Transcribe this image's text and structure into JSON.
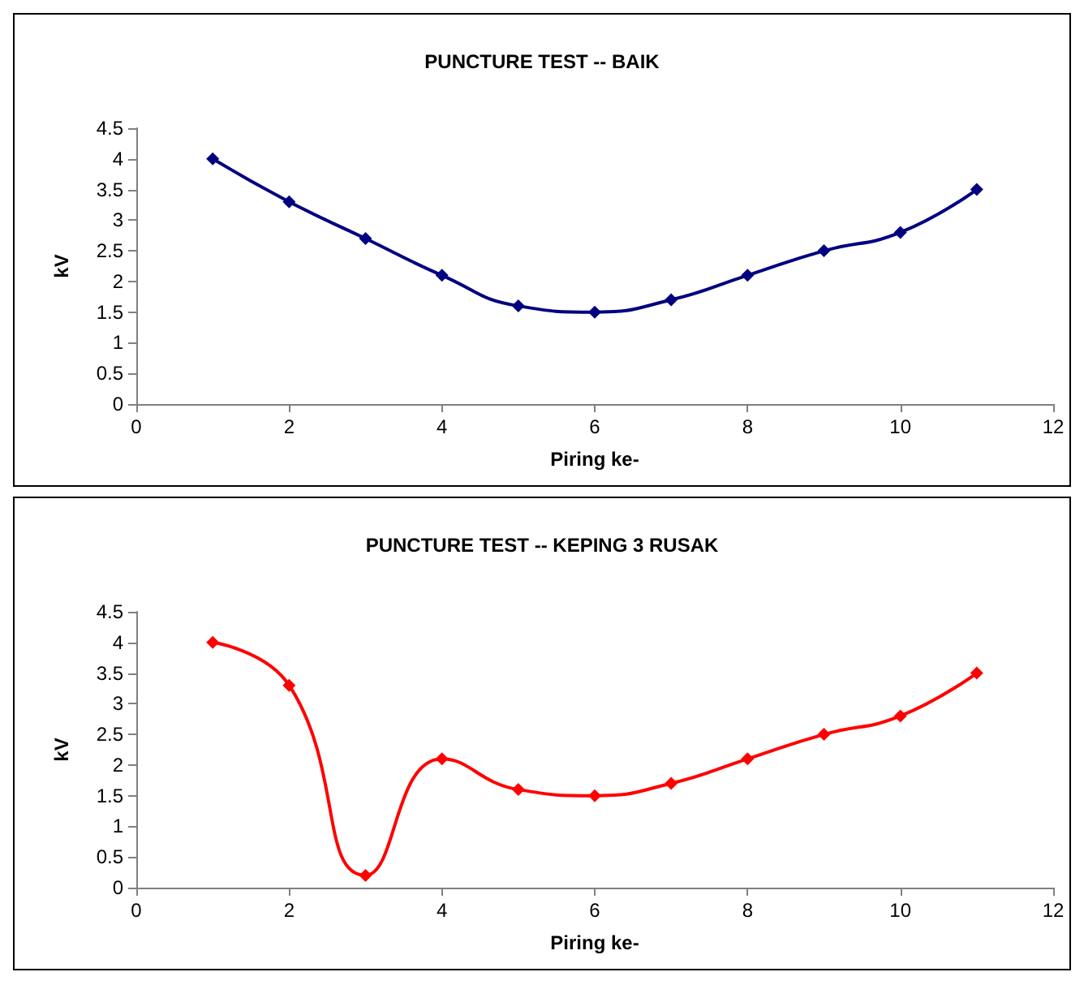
{
  "chart_data": [
    {
      "type": "line",
      "title": "PUNCTURE TEST -- BAIK",
      "xlabel": "Piring ke-",
      "ylabel": "kV",
      "x": [
        1,
        2,
        3,
        4,
        5,
        6,
        7,
        8,
        9,
        10,
        11
      ],
      "series": [
        {
          "color": "#000080",
          "values": [
            4,
            3.3,
            2.7,
            2.1,
            1.6,
            1.5,
            1.7,
            2.1,
            2.5,
            2.8,
            3.5
          ]
        }
      ],
      "xlim": [
        0,
        12
      ],
      "xticks": [
        0,
        2,
        4,
        6,
        8,
        10,
        12
      ],
      "ylim": [
        0,
        4.5
      ],
      "yticks": [
        0,
        0.5,
        1,
        1.5,
        2,
        2.5,
        3,
        3.5,
        4,
        4.5
      ],
      "marker": "diamond",
      "grid": false
    },
    {
      "type": "line",
      "title": "PUNCTURE TEST -- KEPING 3 RUSAK",
      "xlabel": "Piring ke-",
      "ylabel": "kV",
      "x": [
        1,
        2,
        3,
        4,
        5,
        6,
        7,
        8,
        9,
        10,
        11
      ],
      "series": [
        {
          "color": "#ff0000",
          "values": [
            4,
            3.3,
            0.2,
            2.1,
            1.6,
            1.5,
            1.7,
            2.1,
            2.5,
            2.8,
            3.5
          ]
        }
      ],
      "xlim": [
        0,
        12
      ],
      "xticks": [
        0,
        2,
        4,
        6,
        8,
        10,
        12
      ],
      "ylim": [
        0,
        4.5
      ],
      "yticks": [
        0,
        0.5,
        1,
        1.5,
        2,
        2.5,
        3,
        3.5,
        4,
        4.5
      ],
      "marker": "diamond",
      "grid": false
    }
  ]
}
